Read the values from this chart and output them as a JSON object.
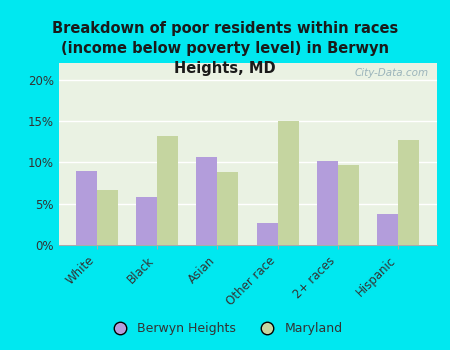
{
  "title": "Breakdown of poor residents within races\n(income below poverty level) in Berwyn\nHeights, MD",
  "categories": [
    "White",
    "Black",
    "Asian",
    "Other race",
    "2+ races",
    "Hispanic"
  ],
  "berwyn_heights": [
    9.0,
    5.8,
    10.6,
    2.7,
    10.1,
    3.7
  ],
  "maryland": [
    6.7,
    13.2,
    8.8,
    15.0,
    9.7,
    12.7
  ],
  "berwyn_color": "#b39ddb",
  "maryland_color": "#c5d5a0",
  "background_outer": "#00e8f0",
  "background_inner": "#eaf2e3",
  "ylim": [
    0,
    22
  ],
  "yticks": [
    0,
    5,
    10,
    15,
    20
  ],
  "ytick_labels": [
    "0%",
    "5%",
    "10%",
    "15%",
    "20%"
  ],
  "bar_width": 0.35,
  "legend_labels": [
    "Berwyn Heights",
    "Maryland"
  ],
  "watermark": "City-Data.com"
}
